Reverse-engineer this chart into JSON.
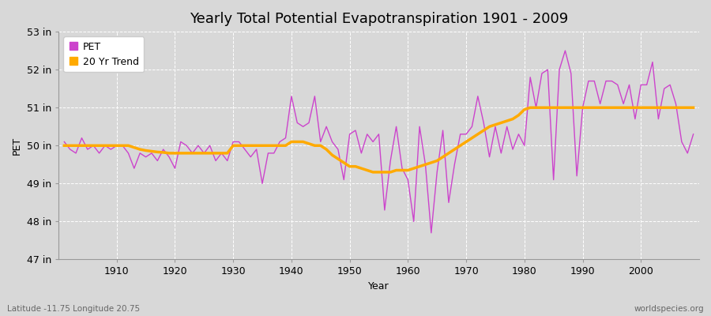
{
  "title": "Yearly Total Potential Evapotranspiration 1901 - 2009",
  "ylabel": "PET",
  "xlabel": "Year",
  "bottom_left_label": "Latitude -11.75 Longitude 20.75",
  "bottom_right_label": "worldspecies.org",
  "pet_color": "#cc44cc",
  "trend_color": "#ffaa00",
  "background_color": "#d8d8d8",
  "plot_bg_color": "#d8d8d8",
  "ylim": [
    47,
    53
  ],
  "yticks": [
    47,
    48,
    49,
    50,
    51,
    52,
    53
  ],
  "ytick_labels": [
    "47 in",
    "48 in",
    "49 in",
    "50 in",
    "51 in",
    "52 in",
    "53 in"
  ],
  "years": [
    1901,
    1902,
    1903,
    1904,
    1905,
    1906,
    1907,
    1908,
    1909,
    1910,
    1911,
    1912,
    1913,
    1914,
    1915,
    1916,
    1917,
    1918,
    1919,
    1920,
    1921,
    1922,
    1923,
    1924,
    1925,
    1926,
    1927,
    1928,
    1929,
    1930,
    1931,
    1932,
    1933,
    1934,
    1935,
    1936,
    1937,
    1938,
    1939,
    1940,
    1941,
    1942,
    1943,
    1944,
    1945,
    1946,
    1947,
    1948,
    1949,
    1950,
    1951,
    1952,
    1953,
    1954,
    1955,
    1956,
    1957,
    1958,
    1959,
    1960,
    1961,
    1962,
    1963,
    1964,
    1965,
    1966,
    1967,
    1968,
    1969,
    1970,
    1971,
    1972,
    1973,
    1974,
    1975,
    1976,
    1977,
    1978,
    1979,
    1980,
    1981,
    1982,
    1983,
    1984,
    1985,
    1986,
    1987,
    1988,
    1989,
    1990,
    1991,
    1992,
    1993,
    1994,
    1995,
    1996,
    1997,
    1998,
    1999,
    2000,
    2001,
    2002,
    2003,
    2004,
    2005,
    2006,
    2007,
    2008,
    2009
  ],
  "pet_values": [
    50.1,
    49.9,
    49.8,
    50.2,
    49.9,
    50.0,
    49.8,
    50.0,
    49.9,
    50.0,
    50.0,
    49.8,
    49.4,
    49.8,
    49.7,
    49.8,
    49.6,
    49.9,
    49.7,
    49.4,
    50.1,
    50.0,
    49.8,
    50.0,
    49.8,
    50.0,
    49.6,
    49.8,
    49.6,
    50.1,
    50.1,
    49.9,
    49.7,
    49.9,
    49.0,
    49.8,
    49.8,
    50.1,
    50.2,
    51.3,
    50.6,
    50.5,
    50.6,
    51.3,
    50.1,
    50.5,
    50.1,
    49.9,
    49.1,
    50.3,
    50.4,
    49.8,
    50.3,
    50.1,
    50.3,
    48.3,
    49.6,
    50.5,
    49.4,
    49.1,
    48.0,
    50.5,
    49.5,
    47.7,
    49.3,
    50.4,
    48.5,
    49.5,
    50.3,
    50.3,
    50.5,
    51.3,
    50.6,
    49.7,
    50.5,
    49.8,
    50.5,
    49.9,
    50.3,
    50.0,
    51.8,
    51.0,
    51.9,
    52.0,
    49.1,
    52.0,
    52.5,
    51.9,
    49.2,
    51.0,
    51.7,
    51.7,
    51.1,
    51.7,
    51.7,
    51.6,
    51.1,
    51.6,
    50.7,
    51.6,
    51.6,
    52.2,
    50.7,
    51.5,
    51.6,
    51.1,
    50.1,
    49.8,
    50.3
  ],
  "trend_values": [
    50.0,
    50.0,
    50.0,
    50.0,
    50.0,
    50.0,
    50.0,
    50.0,
    50.0,
    50.0,
    50.0,
    50.0,
    49.95,
    49.9,
    49.87,
    49.85,
    49.83,
    49.82,
    49.8,
    49.8,
    49.8,
    49.8,
    49.8,
    49.8,
    49.8,
    49.8,
    49.8,
    49.8,
    49.8,
    50.0,
    50.0,
    50.0,
    50.0,
    50.0,
    50.0,
    50.0,
    50.0,
    50.0,
    50.0,
    50.1,
    50.1,
    50.1,
    50.05,
    50.0,
    50.0,
    49.9,
    49.75,
    49.65,
    49.55,
    49.45,
    49.45,
    49.4,
    49.35,
    49.3,
    49.3,
    49.3,
    49.3,
    49.35,
    49.35,
    49.35,
    49.4,
    49.45,
    49.5,
    49.55,
    49.6,
    49.7,
    49.8,
    49.9,
    50.0,
    50.1,
    50.2,
    50.3,
    50.4,
    50.5,
    50.55,
    50.6,
    50.65,
    50.7,
    50.8,
    50.95,
    51.0,
    51.0,
    51.0,
    51.0,
    51.0,
    51.0,
    51.0,
    51.0,
    51.0,
    51.0,
    51.0,
    51.0,
    51.0,
    51.0,
    51.0,
    51.0,
    51.0,
    51.0,
    51.0,
    51.0,
    51.0,
    51.0,
    51.0,
    51.0,
    51.0,
    51.0,
    51.0,
    51.0,
    51.0
  ],
  "legend_pet_label": "PET",
  "legend_trend_label": "20 Yr Trend",
  "title_fontsize": 13,
  "label_fontsize": 9,
  "tick_fontsize": 9,
  "xlim_left": 1900,
  "xlim_right": 2010
}
